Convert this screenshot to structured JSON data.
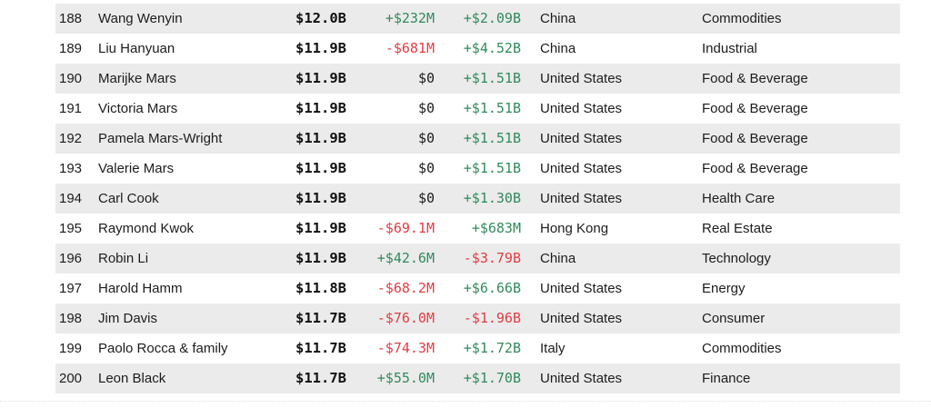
{
  "colors": {
    "positive": "#318a5d",
    "negative": "#e03d44",
    "stripe": "#ebebeb",
    "text": "#1c1c1c"
  },
  "table": {
    "columns": [
      "rank",
      "name",
      "net_worth",
      "daily_change",
      "ytd_change",
      "country",
      "industry"
    ],
    "rows": [
      {
        "rank": "188",
        "name": "Wang Wenyin",
        "net_worth": "$12.0B",
        "daily_change": "+$232M",
        "daily_class": "pos",
        "ytd_change": "+$2.09B",
        "ytd_class": "pos",
        "country": "China",
        "industry": "Commodities"
      },
      {
        "rank": "189",
        "name": "Liu Hanyuan",
        "net_worth": "$11.9B",
        "daily_change": "-$681M",
        "daily_class": "neg",
        "ytd_change": "+$4.52B",
        "ytd_class": "pos",
        "country": "China",
        "industry": "Industrial"
      },
      {
        "rank": "190",
        "name": "Marijke Mars",
        "net_worth": "$11.9B",
        "daily_change": "$0",
        "daily_class": "neutral",
        "ytd_change": "+$1.51B",
        "ytd_class": "pos",
        "country": "United States",
        "industry": "Food & Beverage"
      },
      {
        "rank": "191",
        "name": "Victoria Mars",
        "net_worth": "$11.9B",
        "daily_change": "$0",
        "daily_class": "neutral",
        "ytd_change": "+$1.51B",
        "ytd_class": "pos",
        "country": "United States",
        "industry": "Food & Beverage"
      },
      {
        "rank": "192",
        "name": "Pamela Mars-Wright",
        "net_worth": "$11.9B",
        "daily_change": "$0",
        "daily_class": "neutral",
        "ytd_change": "+$1.51B",
        "ytd_class": "pos",
        "country": "United States",
        "industry": "Food & Beverage"
      },
      {
        "rank": "193",
        "name": "Valerie Mars",
        "net_worth": "$11.9B",
        "daily_change": "$0",
        "daily_class": "neutral",
        "ytd_change": "+$1.51B",
        "ytd_class": "pos",
        "country": "United States",
        "industry": "Food & Beverage"
      },
      {
        "rank": "194",
        "name": "Carl Cook",
        "net_worth": "$11.9B",
        "daily_change": "$0",
        "daily_class": "neutral",
        "ytd_change": "+$1.30B",
        "ytd_class": "pos",
        "country": "United States",
        "industry": "Health Care"
      },
      {
        "rank": "195",
        "name": "Raymond Kwok",
        "net_worth": "$11.9B",
        "daily_change": "-$69.1M",
        "daily_class": "neg",
        "ytd_change": "+$683M",
        "ytd_class": "pos",
        "country": "Hong Kong",
        "industry": "Real Estate"
      },
      {
        "rank": "196",
        "name": "Robin Li",
        "net_worth": "$11.9B",
        "daily_change": "+$42.6M",
        "daily_class": "pos",
        "ytd_change": "-$3.79B",
        "ytd_class": "neg",
        "country": "China",
        "industry": "Technology"
      },
      {
        "rank": "197",
        "name": "Harold Hamm",
        "net_worth": "$11.8B",
        "daily_change": "-$68.2M",
        "daily_class": "neg",
        "ytd_change": "+$6.66B",
        "ytd_class": "pos",
        "country": "United States",
        "industry": "Energy"
      },
      {
        "rank": "198",
        "name": "Jim Davis",
        "net_worth": "$11.7B",
        "daily_change": "-$76.0M",
        "daily_class": "neg",
        "ytd_change": "-$1.96B",
        "ytd_class": "neg",
        "country": "United States",
        "industry": "Consumer"
      },
      {
        "rank": "199",
        "name": "Paolo Rocca & family",
        "net_worth": "$11.7B",
        "daily_change": "-$74.3M",
        "daily_class": "neg",
        "ytd_change": "+$1.72B",
        "ytd_class": "pos",
        "country": "Italy",
        "industry": "Commodities"
      },
      {
        "rank": "200",
        "name": "Leon Black",
        "net_worth": "$11.7B",
        "daily_change": "+$55.0M",
        "daily_class": "pos",
        "ytd_change": "+$1.70B",
        "ytd_class": "pos",
        "country": "United States",
        "industry": "Finance"
      }
    ]
  }
}
